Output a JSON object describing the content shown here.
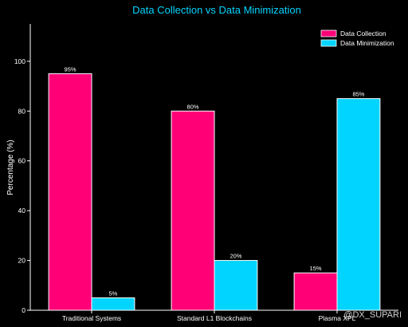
{
  "chart_data": {
    "type": "bar",
    "title": "Data Collection vs Data Minimization",
    "xlabel": "",
    "ylabel": "Percentage (%)",
    "ylim": [
      0,
      115
    ],
    "yticks": [
      0,
      20,
      40,
      60,
      80,
      100
    ],
    "categories": [
      "Traditional Systems",
      "Standard L1 Blockchains",
      "Plasma XPL"
    ],
    "series": [
      {
        "name": "Data Collection",
        "values": [
          95,
          80,
          15
        ],
        "labels": [
          "95%",
          "80%",
          "15%"
        ],
        "color": "#ff0077"
      },
      {
        "name": "Data Minimization",
        "values": [
          5,
          20,
          85
        ],
        "labels": [
          "5%",
          "20%",
          "85%"
        ],
        "color": "#00d4ff"
      }
    ],
    "legend_position": "top-right",
    "grid": false,
    "title_color": "#00d4ff",
    "background": "#000000"
  },
  "watermark": "@DX_SUPARI"
}
